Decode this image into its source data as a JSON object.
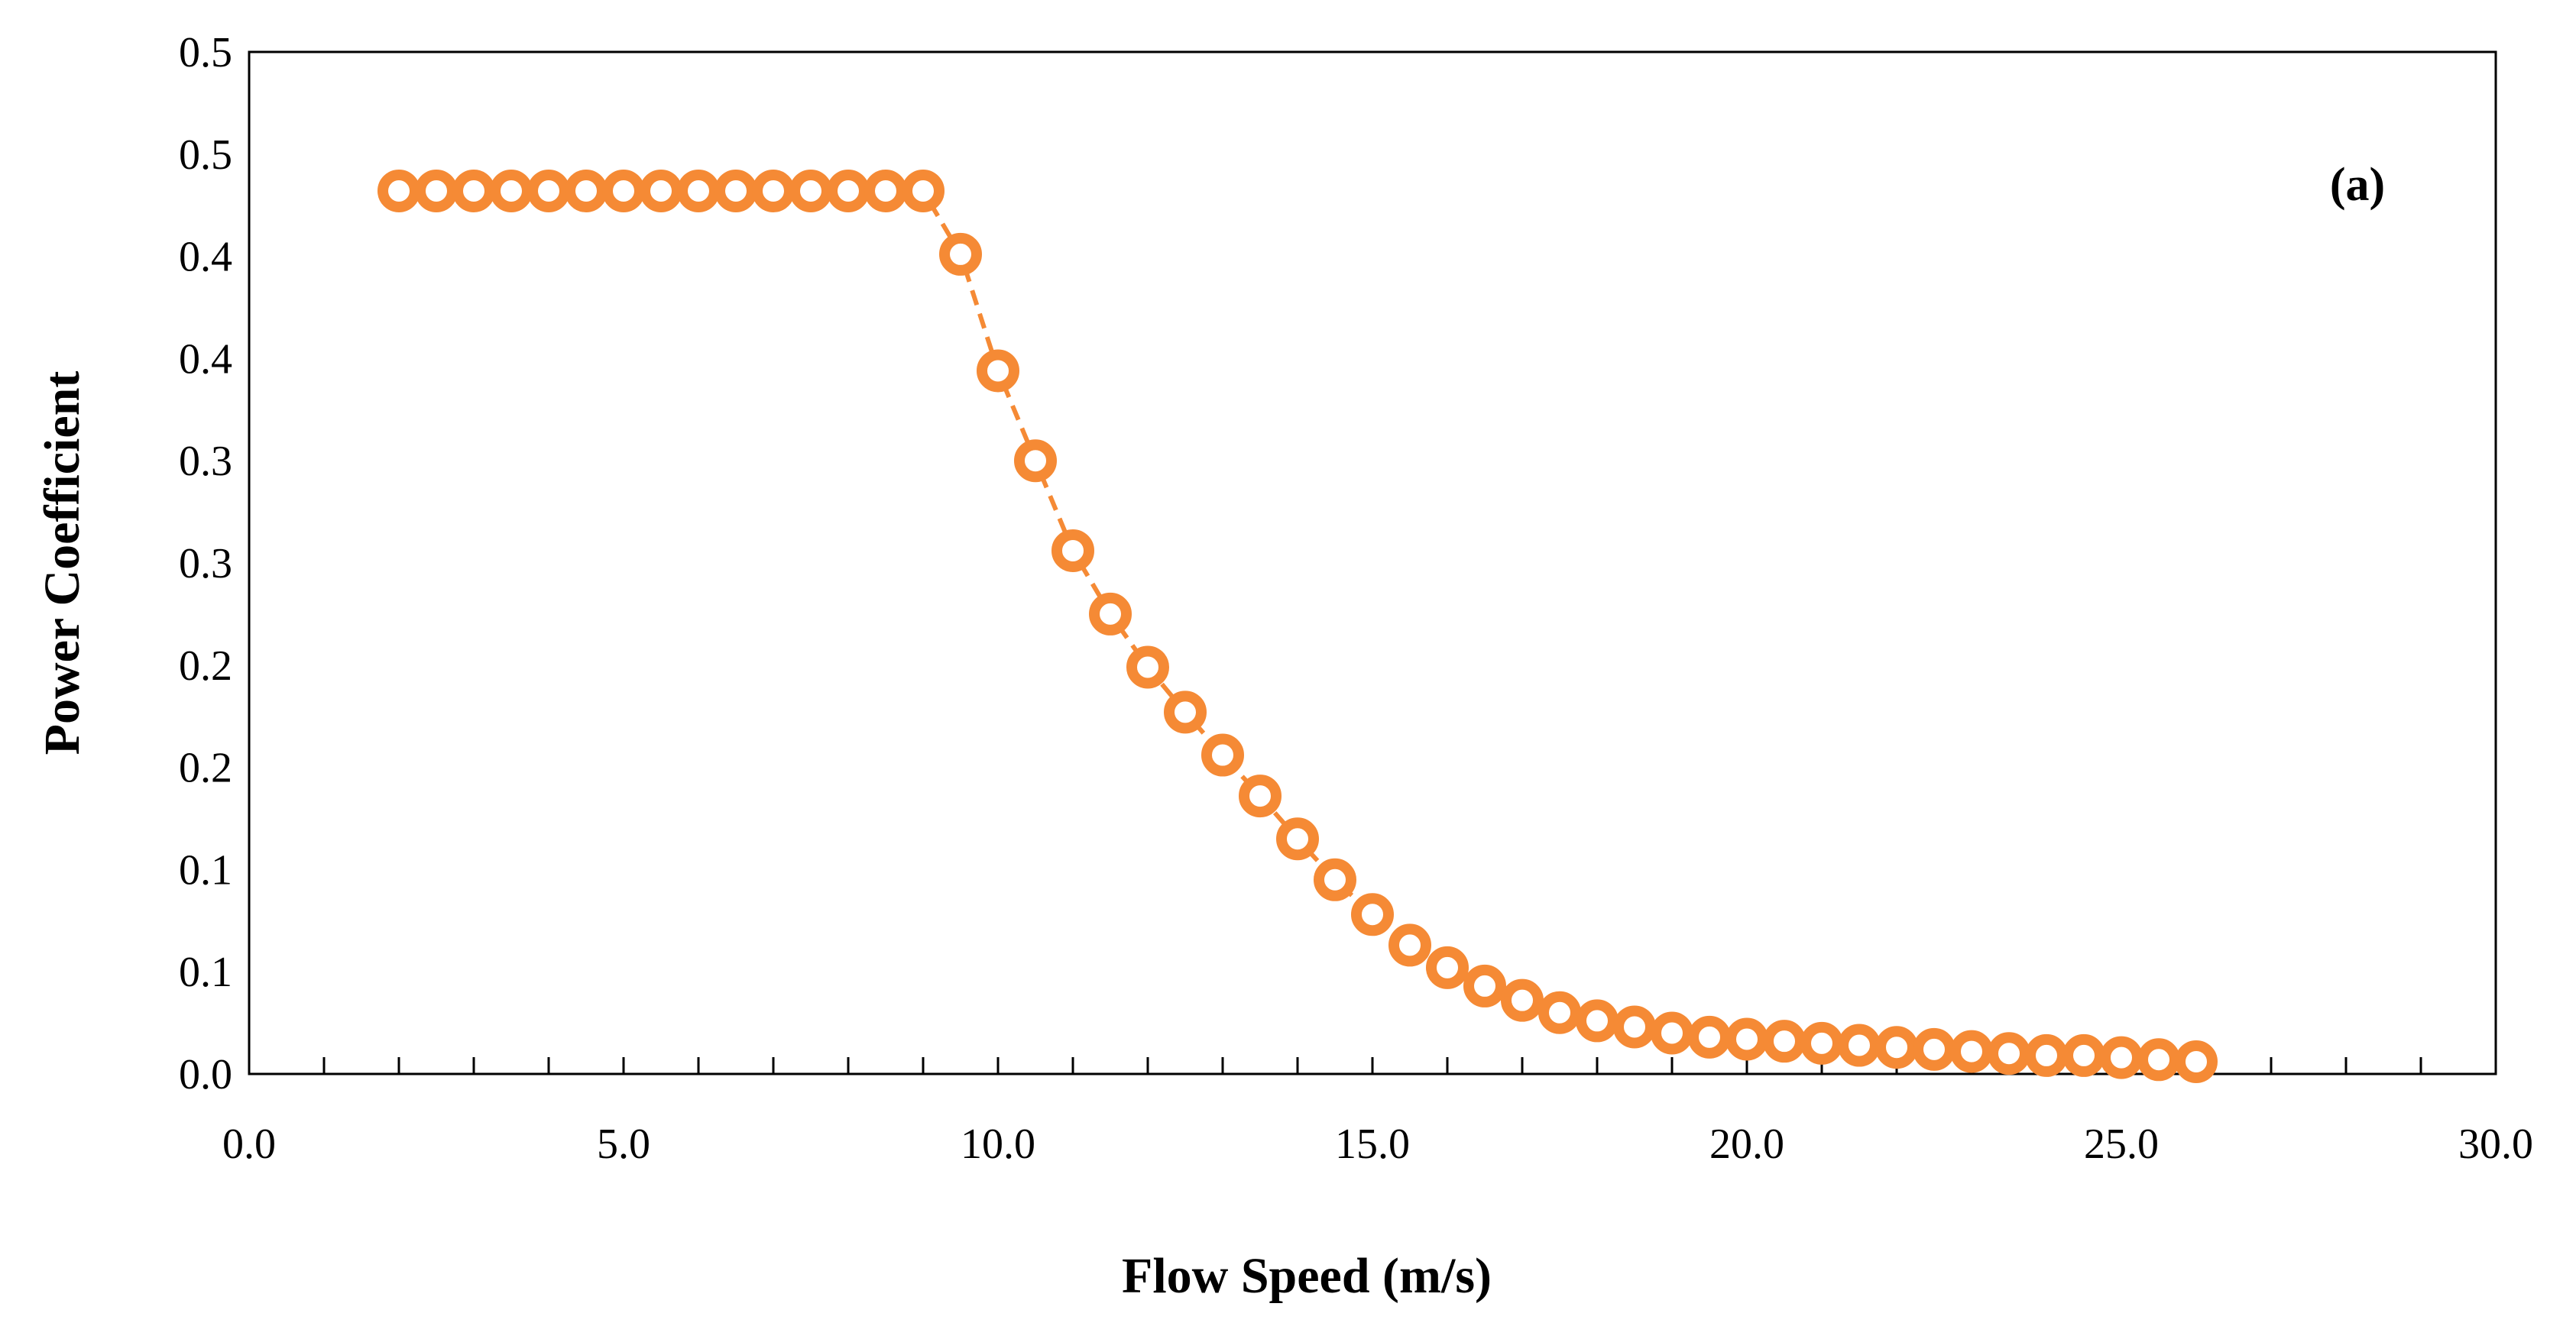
{
  "chart_data": {
    "type": "line",
    "title": "",
    "panel_label": "(a)",
    "xlabel": "Flow Speed (m/s)",
    "ylabel": "Power Coefficient",
    "xlim": [
      0,
      30
    ],
    "ylim": [
      0,
      0.5
    ],
    "x_tick_values": [
      0,
      5,
      10,
      15,
      20,
      25,
      30
    ],
    "x_tick_labels": [
      "0.0",
      "5.0",
      "10.0",
      "15.0",
      "20.0",
      "25.0",
      "30.0"
    ],
    "x_minor_tick_step": 1,
    "y_tick_values": [
      0,
      0.05,
      0.1,
      0.15,
      0.2,
      0.25,
      0.3,
      0.35,
      0.4,
      0.45,
      0.5
    ],
    "y_tick_labels": [
      "0.0",
      "0.1",
      "0.1",
      "0.2",
      "0.2",
      "0.3",
      "0.3",
      "0.4",
      "0.4",
      "0.5",
      "0.5"
    ],
    "grid": false,
    "series": [
      {
        "name": "Power Coefficient",
        "color": "#F58A35",
        "marker": "circle-open",
        "line_style": "dashed",
        "x": [
          2,
          2.5,
          3,
          3.5,
          4,
          4.5,
          5,
          5.5,
          6,
          6.5,
          7,
          7.5,
          8,
          8.5,
          9,
          9.5,
          10,
          10.5,
          11,
          11.5,
          12,
          12.5,
          13,
          13.5,
          14,
          14.5,
          15,
          15.5,
          16,
          16.5,
          17,
          17.5,
          18,
          18.5,
          19,
          19.5,
          20,
          20.5,
          21,
          21.5,
          22,
          22.5,
          23,
          23.5,
          24,
          24.5,
          25,
          25.5,
          26
        ],
        "values": [
          0.432,
          0.432,
          0.432,
          0.432,
          0.432,
          0.432,
          0.432,
          0.432,
          0.432,
          0.432,
          0.432,
          0.432,
          0.432,
          0.432,
          0.432,
          0.401,
          0.344,
          0.3,
          0.256,
          0.225,
          0.199,
          0.177,
          0.156,
          0.136,
          0.115,
          0.095,
          0.078,
          0.063,
          0.052,
          0.043,
          0.036,
          0.03,
          0.026,
          0.023,
          0.02,
          0.018,
          0.017,
          0.016,
          0.015,
          0.014,
          0.013,
          0.012,
          0.011,
          0.01,
          0.009,
          0.009,
          0.008,
          0.007,
          0.006
        ]
      }
    ]
  }
}
